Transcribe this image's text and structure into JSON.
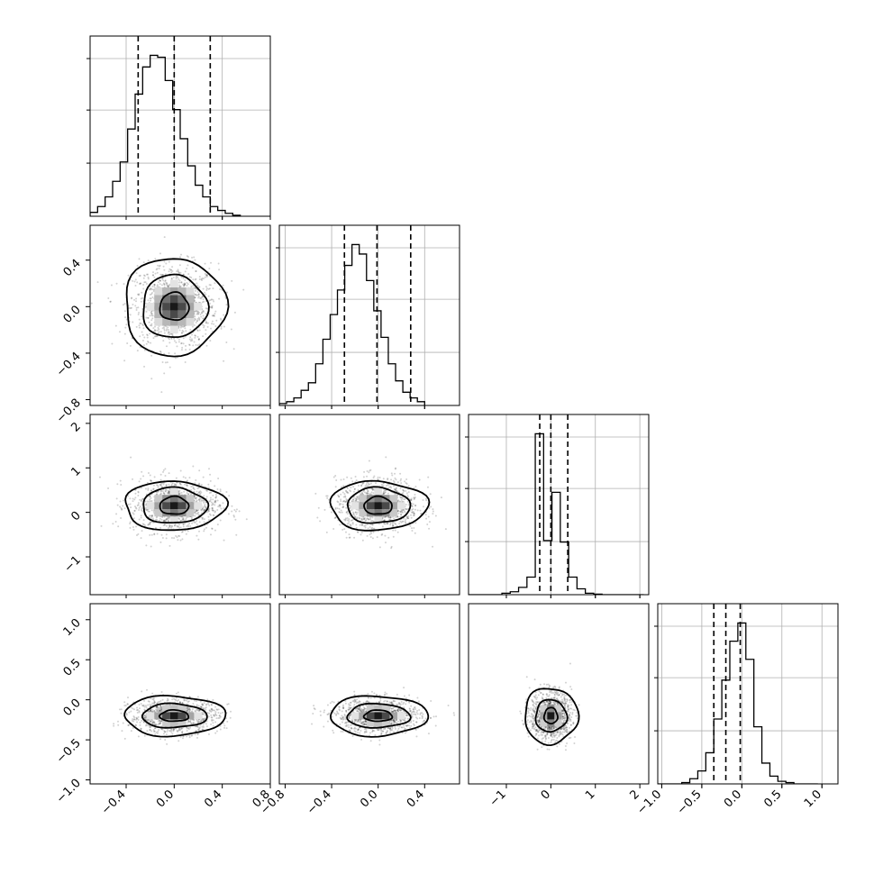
{
  "chart_data": {
    "type": "scatter",
    "subtype": "corner-plot",
    "title": "",
    "n_params": 4,
    "param_labels": [
      "",
      "",
      "",
      ""
    ],
    "axis_ranges": [
      [
        -0.7,
        0.8
      ],
      [
        -0.85,
        0.7
      ],
      [
        -1.85,
        2.2
      ],
      [
        -1.05,
        1.2
      ]
    ],
    "ticks": {
      "x": [
        {
          "values": [
            -0.4,
            0.0,
            0.4,
            0.8
          ],
          "labels": [
            "−0.4",
            "0.0",
            "0.4",
            "0.8"
          ]
        },
        {
          "values": [
            -0.8,
            -0.4,
            0.0,
            0.4
          ],
          "labels": [
            "−0.8",
            "−0.4",
            "0.0",
            "0.4"
          ]
        },
        {
          "values": [
            -1,
            0,
            1,
            2
          ],
          "labels": [
            "−1",
            "0",
            "1",
            "2"
          ]
        },
        {
          "values": [
            -1.0,
            -0.5,
            0.0,
            0.5,
            1.0
          ],
          "labels": [
            "−1.0",
            "−0.5",
            "0.0",
            "0.5",
            "1.0"
          ]
        }
      ],
      "y": [
        null,
        {
          "values": [
            -0.8,
            -0.4,
            0.0,
            0.4
          ],
          "labels": [
            "−0.8",
            "−0.4",
            "0.0",
            "0.4"
          ]
        },
        {
          "values": [
            -1,
            0,
            1,
            2
          ],
          "labels": [
            "−1",
            "0",
            "1",
            "2"
          ]
        },
        {
          "values": [
            -1.0,
            -0.5,
            0.0,
            0.5,
            1.0
          ],
          "labels": [
            "−1.0",
            "−0.5",
            "0.0",
            "0.5",
            "1.0"
          ]
        }
      ]
    },
    "grid": true,
    "quantiles": [
      [
        -0.3,
        0.0,
        0.3
      ],
      [
        -0.29,
        -0.01,
        0.28
      ],
      [
        -0.25,
        0.0,
        0.38
      ],
      [
        -0.35,
        -0.2,
        -0.02
      ]
    ],
    "histograms": [
      {
        "bin_edges_from": -0.7,
        "bin_width": 0.0625,
        "counts": [
          2,
          5,
          10,
          18,
          28,
          45,
          63,
          77,
          83,
          82,
          70,
          55,
          40,
          26,
          16,
          10,
          5,
          3,
          1.5,
          0.5
        ]
      },
      {
        "bin_edges_from": -0.85,
        "bin_width": 0.0625,
        "counts": [
          1,
          2,
          4,
          8,
          12,
          22,
          35,
          48,
          61,
          74,
          85,
          80,
          66,
          50,
          36,
          22,
          13,
          7,
          4,
          2
        ]
      },
      {
        "bin_edges_from": -1.85,
        "bin_width": 0.1875,
        "counts": [
          0,
          0,
          0,
          0,
          1,
          2,
          5,
          12,
          110,
          37,
          70,
          36,
          12,
          4,
          1,
          0.4,
          0,
          0,
          0,
          0,
          0
        ]
      },
      {
        "bin_edges_from": -1.05,
        "bin_width": 0.1,
        "counts": [
          0,
          0,
          0,
          0.5,
          2,
          5,
          12,
          25,
          40,
          55,
          62,
          48,
          22,
          8,
          3,
          1,
          0.5,
          0,
          0,
          0
        ]
      }
    ],
    "pairs": [
      {
        "row": 1,
        "col": 0,
        "mean_x": 0.0,
        "mean_y": 0.0,
        "levels_x": [
          0.12,
          0.27,
          0.42
        ],
        "levels_y": [
          0.12,
          0.27,
          0.42
        ]
      },
      {
        "row": 2,
        "col": 0,
        "mean_x": 0.0,
        "mean_y": 0.15,
        "levels_x": [
          0.12,
          0.27,
          0.42
        ],
        "levels_y": [
          0.2,
          0.4,
          0.55
        ]
      },
      {
        "row": 2,
        "col": 1,
        "mean_x": 0.0,
        "mean_y": 0.15,
        "levels_x": [
          0.12,
          0.27,
          0.42
        ],
        "levels_y": [
          0.2,
          0.4,
          0.55
        ]
      },
      {
        "row": 3,
        "col": 0,
        "mean_x": 0.0,
        "mean_y": -0.2,
        "levels_x": [
          0.12,
          0.27,
          0.42
        ],
        "levels_y": [
          0.07,
          0.15,
          0.25
        ]
      },
      {
        "row": 3,
        "col": 1,
        "mean_x": 0.0,
        "mean_y": -0.2,
        "levels_x": [
          0.12,
          0.27,
          0.42
        ],
        "levels_y": [
          0.07,
          0.15,
          0.25
        ]
      },
      {
        "row": 3,
        "col": 2,
        "mean_x": 0.0,
        "mean_y": -0.2,
        "levels_x": [
          0.15,
          0.35,
          0.6
        ],
        "levels_y": [
          0.1,
          0.2,
          0.35
        ]
      }
    ]
  }
}
